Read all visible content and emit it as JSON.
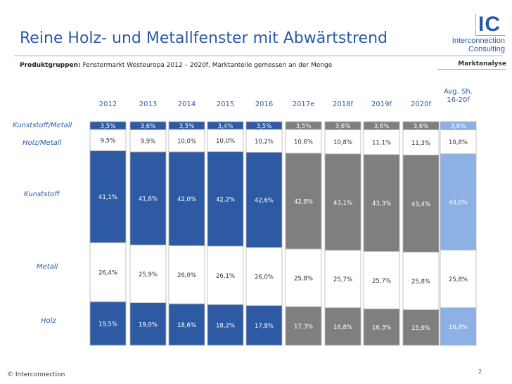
{
  "header": {
    "title": "Reine Holz- und Metallfenster mit Abwärtstrend",
    "subtitle_label": "Produktgruppen:",
    "subtitle_text": " Fenstermarkt Westeuropa 2012 – 2020f, Marktanteile gemessen an der Menge",
    "section": "Marktanalyse"
  },
  "logo": {
    "mark": "IC",
    "line1": "Interconnection",
    "line2": "Consulting"
  },
  "footer": {
    "copyright": "© Interconnection",
    "page": "2"
  },
  "colors": {
    "blue": "#2d5aa3",
    "gray": "#7f7f7f",
    "light_blue": "#8db1e4",
    "white_seg": "#ffffff",
    "border": "#b4b4b4",
    "label_dark": "#333333",
    "label_light": "#ffffff"
  },
  "chart_data": {
    "type": "bar",
    "stacked": true,
    "categories": [
      "2012",
      "2013",
      "2014",
      "2015",
      "2016",
      "2017e",
      "2018f",
      "2019f",
      "2020f",
      "Avg. Sh. 16-20f"
    ],
    "series": [
      {
        "name": "Holz",
        "values": [
          19.5,
          19.0,
          18.6,
          18.2,
          17.8,
          17.3,
          16.8,
          16.3,
          15.9,
          16.8
        ],
        "labels": [
          "19,5%",
          "19,0%",
          "18,6%",
          "18,2%",
          "17,8%",
          "17,3%",
          "16,8%",
          "16,3%",
          "15,9%",
          "16,8%"
        ]
      },
      {
        "name": "Metall",
        "values": [
          26.4,
          25.9,
          26.0,
          26.1,
          26.0,
          25.8,
          25.7,
          25.7,
          25.8,
          25.8
        ],
        "labels": [
          "26,4%",
          "25,9%",
          "26,0%",
          "26,1%",
          "26,0%",
          "25,8%",
          "25,7%",
          "25,7%",
          "25,8%",
          "25,8%"
        ]
      },
      {
        "name": "Kunststoff",
        "values": [
          41.1,
          41.6,
          42.0,
          42.2,
          42.6,
          42.8,
          43.1,
          43.3,
          43.4,
          43.0
        ],
        "labels": [
          "41,1%",
          "41,6%",
          "42,0%",
          "42,2%",
          "42,6%",
          "42,8%",
          "43,1%",
          "43,3%",
          "43,4%",
          "43,0%"
        ]
      },
      {
        "name": "Holz/Metall",
        "values": [
          9.5,
          9.9,
          10.0,
          10.0,
          10.2,
          10.6,
          10.8,
          11.1,
          11.3,
          10.8
        ],
        "labels": [
          "9,5%",
          "9,9%",
          "10,0%",
          "10,0%",
          "10,2%",
          "10,6%",
          "10,8%",
          "11,1%",
          "11,3%",
          "10,8%"
        ]
      },
      {
        "name": "Kunststoff/Metall",
        "values": [
          3.5,
          3.6,
          3.5,
          3.4,
          3.5,
          3.5,
          3.6,
          3.6,
          3.6,
          3.6
        ],
        "labels": [
          "3,5%",
          "3,6%",
          "3,5%",
          "3,4%",
          "3,5%",
          "3,5%",
          "3,6%",
          "3,6%",
          "3,6%",
          "3,6%"
        ]
      }
    ],
    "category_groups": [
      "actual",
      "actual",
      "actual",
      "actual",
      "actual",
      "forecast",
      "forecast",
      "forecast",
      "forecast",
      "average"
    ],
    "ylim": [
      0,
      100
    ],
    "grid": false,
    "legend": "left"
  }
}
